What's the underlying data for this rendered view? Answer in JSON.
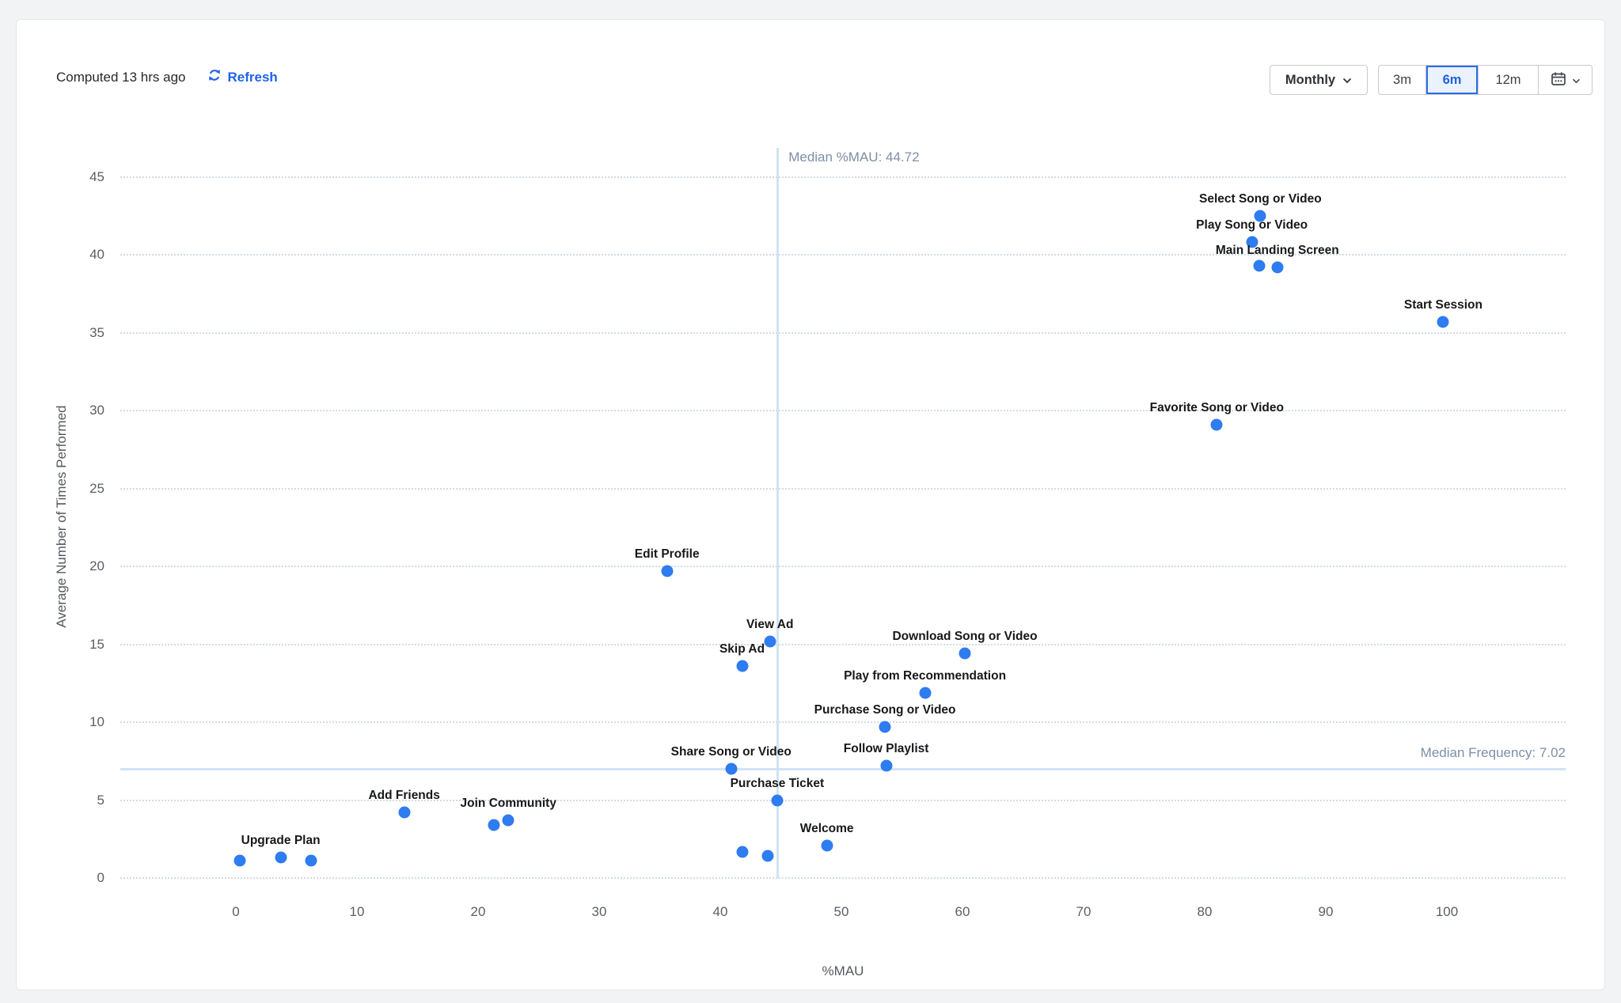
{
  "header": {
    "computed_text": "Computed 13 hrs ago",
    "refresh_label": "Refresh",
    "granularity_label": "Monthly",
    "intervals": [
      "3m",
      "6m",
      "12m"
    ],
    "selected_interval": "6m"
  },
  "colors": {
    "point": "#2e7cf0",
    "refresh_link": "#1f62e9",
    "selected_interval_border": "#2a6ceb",
    "selected_interval_bg": "#eaf2fd",
    "selected_interval_text": "#2361d8",
    "median_line": "#cfe3f5",
    "median_label": "#7d8fa5",
    "gridline": "#d4dbe4",
    "point_label": "#17181a",
    "tick_label": "#5a5e66"
  },
  "chart_data": {
    "type": "scatter",
    "title": "",
    "xlabel": "%MAU",
    "ylabel": "Average Number of Times Performed",
    "xlim": [
      -9,
      112
    ],
    "ylim": [
      0,
      46.5
    ],
    "x_ticks": [
      0,
      10,
      20,
      30,
      40,
      50,
      60,
      70,
      80,
      90,
      100
    ],
    "y_ticks": [
      0,
      5,
      10,
      15,
      20,
      25,
      30,
      35,
      40,
      45
    ],
    "grid": "horizontal-dotted",
    "legend": "none",
    "medians": {
      "x": {
        "value": 44.72,
        "label": "Median %MAU: 44.72"
      },
      "y": {
        "value": 7.02,
        "label": "Median Frequency: 7.02"
      }
    },
    "points": [
      {
        "name": "Select Song or Video",
        "x": 84.6,
        "y": 42.5
      },
      {
        "name": "Play Song or Video",
        "x": 83.9,
        "y": 40.8
      },
      {
        "name": null,
        "x": 84.5,
        "y": 39.3
      },
      {
        "name": "Main Landing Screen",
        "x": 86.0,
        "y": 39.2
      },
      {
        "name": "Start Session",
        "x": 99.7,
        "y": 35.7
      },
      {
        "name": "Favorite Song or Video",
        "x": 81.0,
        "y": 29.1
      },
      {
        "name": "Edit Profile",
        "x": 35.6,
        "y": 19.7
      },
      {
        "name": "View Ad",
        "x": 44.1,
        "y": 15.2
      },
      {
        "name": "Skip Ad",
        "x": 41.8,
        "y": 13.6
      },
      {
        "name": "Download Song or Video",
        "x": 60.2,
        "y": 14.4
      },
      {
        "name": "Play from Recommendation",
        "x": 56.9,
        "y": 11.9
      },
      {
        "name": "Purchase Song or Video",
        "x": 53.6,
        "y": 9.7
      },
      {
        "name": "Follow Playlist",
        "x": 53.7,
        "y": 7.2
      },
      {
        "name": "Share Song or Video",
        "x": 40.9,
        "y": 7.0
      },
      {
        "name": "Purchase Ticket",
        "x": 44.7,
        "y": 5.0
      },
      {
        "name": "Welcome",
        "x": 48.8,
        "y": 2.1
      },
      {
        "name": null,
        "x": 41.8,
        "y": 1.7
      },
      {
        "name": null,
        "x": 43.9,
        "y": 1.4
      },
      {
        "name": "Add Friends",
        "x": 13.9,
        "y": 4.2
      },
      {
        "name": null,
        "x": 21.3,
        "y": 3.4
      },
      {
        "name": "Join Community",
        "x": 22.5,
        "y": 3.7
      },
      {
        "name": "Upgrade Plan",
        "x": 3.7,
        "y": 1.3
      },
      {
        "name": null,
        "x": 0.3,
        "y": 1.1
      },
      {
        "name": null,
        "x": 6.2,
        "y": 1.1
      }
    ]
  }
}
